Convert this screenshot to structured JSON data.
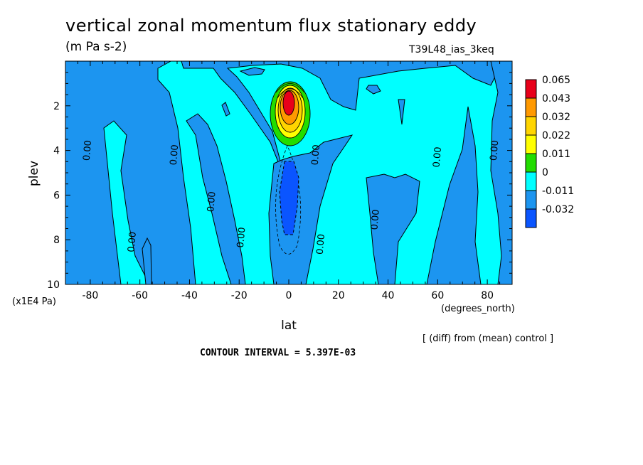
{
  "header": {
    "title": "vertical zonal momentum flux stationary eddy",
    "units": "(m Pa s-2)",
    "run_label": "T39L48_ias_3keq"
  },
  "footer": {
    "diff_note": "[ (diff) from (mean) control ]",
    "contour_interval": "CONTOUR INTERVAL = 5.397E-03"
  },
  "chart_data": {
    "type": "heatmap",
    "title": "vertical zonal momentum flux stationary eddy",
    "xlabel": "lat",
    "x_units": "(degrees_north)",
    "ylabel": "plev",
    "y_units": "(x1E4 Pa)",
    "xlim": [
      -90,
      90
    ],
    "ylim": [
      0,
      10
    ],
    "y_inverted": true,
    "x_ticks": [
      -80,
      -60,
      -40,
      -20,
      0,
      20,
      40,
      60,
      80
    ],
    "x_tick_labels": [
      "-80",
      "-60",
      "-40",
      "-20",
      "0",
      "20",
      "40",
      "60",
      "80"
    ],
    "y_ticks": [
      2,
      4,
      6,
      8,
      10
    ],
    "y_tick_labels": [
      "2",
      "4",
      "6",
      "8",
      "10"
    ],
    "colorbar": {
      "labels": [
        "0.065",
        "0.043",
        "0.032",
        "0.022",
        "0.011",
        "0",
        "-0.011",
        "-0.032"
      ],
      "colors": [
        "#e8001a",
        "#ff9900",
        "#ffd500",
        "#ffff00",
        "#22dd00",
        "#00ffff",
        "#1c95f0",
        "#0a55ff"
      ]
    },
    "background_color": "#00ffff",
    "negative_color": "#1c95f0",
    "contour_label": "0.00",
    "contour_labels": [
      {
        "lat": -81,
        "plev": 4.0
      },
      {
        "lat": -46,
        "plev": 4.2
      },
      {
        "lat": -31,
        "plev": 6.3
      },
      {
        "lat": -63,
        "plev": 8.1
      },
      {
        "lat": -19,
        "plev": 7.9
      },
      {
        "lat": 11,
        "plev": 4.2
      },
      {
        "lat": 13,
        "plev": 8.2
      },
      {
        "lat": 35,
        "plev": 7.1
      },
      {
        "lat": 60,
        "plev": 4.3
      },
      {
        "lat": 83,
        "plev": 4.0
      }
    ],
    "extremes": [
      {
        "name": "max",
        "lat": 0,
        "plev": 2.0,
        "value": 0.065
      },
      {
        "name": "min",
        "lat": 0,
        "plev": 6.0,
        "value": -0.032
      }
    ]
  }
}
